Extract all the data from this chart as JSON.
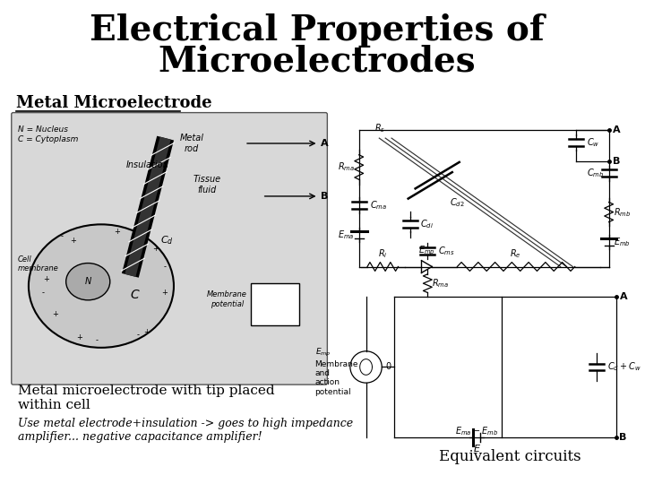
{
  "title_line1": "Electrical Properties of",
  "title_line2": "Microelectrodes",
  "title_fontsize": 28,
  "title_weight": "bold",
  "subtitle": "Metal Microelectrode",
  "subtitle_fontsize": 13,
  "caption1_line1": "Metal microelectrode with tip placed",
  "caption1_line2": "within cell",
  "caption1_fontsize": 11,
  "caption2": "Use metal electrode+insulation -> goes to high impedance\namplifier... negative capacitance amplifier!",
  "caption2_fontsize": 9,
  "caption2_style": "italic",
  "equiv_label": "Equivalent circuits",
  "equiv_fontsize": 12,
  "bg_color": "#ffffff",
  "text_color": "#000000",
  "fig_width": 7.2,
  "fig_height": 5.4,
  "dpi": 100
}
